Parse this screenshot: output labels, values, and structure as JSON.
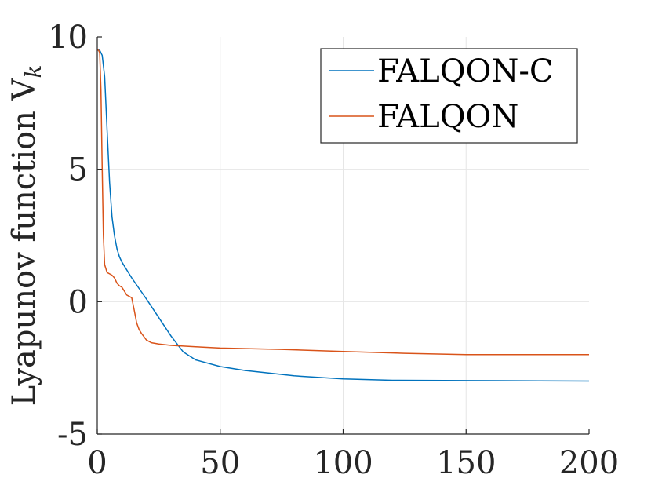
{
  "chart_data": {
    "type": "line",
    "title": "",
    "xlabel": "",
    "ylabel": "Lyapunov function V",
    "ylabel_subscript": "k",
    "xlim": [
      0,
      200
    ],
    "ylim": [
      -5,
      10
    ],
    "xticks": [
      0,
      50,
      100,
      150,
      200
    ],
    "xtick_labels": [
      "0",
      "50",
      "100",
      "150",
      "200"
    ],
    "yticks": [
      -5,
      0,
      5,
      10
    ],
    "ytick_labels": [
      "-5",
      "0",
      "5",
      "10"
    ],
    "grid": true,
    "legend_position": "top-right",
    "series": [
      {
        "name": "FALQON-C",
        "color": "#0072BD",
        "x": [
          0,
          1,
          2,
          3,
          4,
          5,
          6,
          7,
          8,
          9,
          10,
          12,
          14,
          17,
          20,
          25,
          30,
          35,
          40,
          50,
          60,
          80,
          100,
          120,
          150,
          180,
          200
        ],
        "y": [
          9.5,
          9.5,
          9.3,
          8.5,
          6.5,
          4.5,
          3.2,
          2.5,
          2.0,
          1.7,
          1.5,
          1.2,
          0.9,
          0.5,
          0.1,
          -0.6,
          -1.3,
          -1.9,
          -2.2,
          -2.45,
          -2.6,
          -2.8,
          -2.92,
          -2.97,
          -2.98,
          -2.99,
          -3.0
        ]
      },
      {
        "name": "FALQON",
        "color": "#D95319",
        "x": [
          0,
          0.5,
          1,
          1.5,
          2,
          2.5,
          3,
          4,
          5,
          6,
          7,
          8,
          9,
          10,
          11,
          12,
          13,
          14,
          15,
          16,
          17,
          18,
          20,
          22,
          25,
          30,
          40,
          50,
          75,
          100,
          125,
          150,
          175,
          200
        ],
        "y": [
          9.5,
          9.5,
          9.4,
          8.0,
          5.0,
          2.5,
          1.4,
          1.1,
          1.05,
          1.0,
          0.9,
          0.7,
          0.6,
          0.55,
          0.4,
          0.25,
          0.2,
          0.15,
          -0.3,
          -0.8,
          -1.05,
          -1.2,
          -1.45,
          -1.55,
          -1.6,
          -1.65,
          -1.7,
          -1.75,
          -1.8,
          -1.88,
          -1.95,
          -2.0,
          -2.0,
          -2.0
        ]
      }
    ]
  }
}
